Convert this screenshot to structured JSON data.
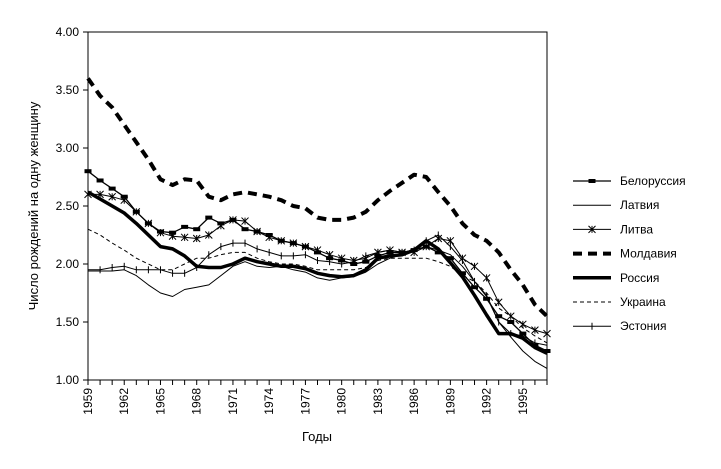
{
  "chart_data": {
    "type": "line",
    "title": "",
    "xlabel": "Годы",
    "ylabel": "Число рождений на одну женщину",
    "xlim": [
      1959,
      1997
    ],
    "ylim": [
      1.0,
      4.0
    ],
    "x_ticks": [
      1959,
      1962,
      1965,
      1968,
      1971,
      1974,
      1977,
      1980,
      1983,
      1986,
      1989,
      1992,
      1995
    ],
    "y_ticks": [
      "1.00",
      "1.50",
      "2.00",
      "2.50",
      "3.00",
      "3.50",
      "4.00"
    ],
    "grid": false,
    "legend_position": "right",
    "x": [
      1959,
      1960,
      1961,
      1962,
      1963,
      1964,
      1965,
      1966,
      1967,
      1968,
      1969,
      1970,
      1971,
      1972,
      1973,
      1974,
      1975,
      1976,
      1977,
      1978,
      1979,
      1980,
      1981,
      1982,
      1983,
      1984,
      1985,
      1986,
      1987,
      1988,
      1989,
      1990,
      1991,
      1992,
      1993,
      1994,
      1995,
      1996,
      1997
    ],
    "series": [
      {
        "name": "Белоруссия",
        "style": "thin-dash-marker",
        "values": [
          2.8,
          2.72,
          2.65,
          2.58,
          2.45,
          2.35,
          2.28,
          2.27,
          2.32,
          2.3,
          2.4,
          2.35,
          2.38,
          2.3,
          2.28,
          2.25,
          2.2,
          2.18,
          2.15,
          2.1,
          2.05,
          2.03,
          2.0,
          2.02,
          2.07,
          2.1,
          2.1,
          2.12,
          2.15,
          2.1,
          2.05,
          1.92,
          1.8,
          1.7,
          1.55,
          1.5,
          1.4,
          1.3,
          1.25
        ]
      },
      {
        "name": "Латвия",
        "style": "thin",
        "values": [
          1.94,
          1.94,
          1.94,
          1.95,
          1.9,
          1.82,
          1.75,
          1.72,
          1.78,
          1.8,
          1.82,
          1.9,
          1.98,
          2.02,
          1.98,
          1.97,
          1.98,
          1.95,
          1.93,
          1.88,
          1.86,
          1.88,
          1.89,
          1.93,
          2.0,
          2.05,
          2.08,
          2.12,
          2.15,
          2.12,
          2.08,
          1.98,
          1.85,
          1.73,
          1.5,
          1.37,
          1.25,
          1.16,
          1.1
        ]
      },
      {
        "name": "Литва",
        "style": "thin-star",
        "values": [
          2.6,
          2.6,
          2.58,
          2.55,
          2.45,
          2.35,
          2.27,
          2.24,
          2.23,
          2.22,
          2.25,
          2.33,
          2.38,
          2.37,
          2.28,
          2.23,
          2.2,
          2.18,
          2.15,
          2.12,
          2.08,
          2.05,
          2.03,
          2.05,
          2.1,
          2.12,
          2.1,
          2.1,
          2.15,
          2.22,
          2.2,
          2.05,
          1.98,
          1.88,
          1.67,
          1.55,
          1.48,
          1.43,
          1.4
        ]
      },
      {
        "name": "Молдавия",
        "style": "thick-dash",
        "values": [
          3.6,
          3.45,
          3.35,
          3.2,
          3.05,
          2.9,
          2.73,
          2.68,
          2.73,
          2.72,
          2.58,
          2.55,
          2.6,
          2.62,
          2.6,
          2.58,
          2.55,
          2.5,
          2.48,
          2.4,
          2.38,
          2.38,
          2.4,
          2.45,
          2.55,
          2.63,
          2.7,
          2.77,
          2.75,
          2.62,
          2.5,
          2.35,
          2.25,
          2.2,
          2.1,
          1.95,
          1.82,
          1.65,
          1.55
        ]
      },
      {
        "name": "Россия",
        "style": "thick",
        "values": [
          2.62,
          2.56,
          2.5,
          2.44,
          2.35,
          2.25,
          2.15,
          2.13,
          2.07,
          1.98,
          1.97,
          1.97,
          2.0,
          2.05,
          2.02,
          2.0,
          1.98,
          1.98,
          1.96,
          1.92,
          1.9,
          1.89,
          1.9,
          1.95,
          2.05,
          2.07,
          2.08,
          2.12,
          2.2,
          2.13,
          2.01,
          1.89,
          1.73,
          1.56,
          1.4,
          1.4,
          1.36,
          1.28,
          1.23
        ]
      },
      {
        "name": "Украина",
        "style": "dashed",
        "values": [
          2.3,
          2.25,
          2.18,
          2.12,
          2.05,
          2.0,
          1.95,
          1.95,
          2.0,
          2.05,
          2.05,
          2.08,
          2.1,
          2.1,
          2.05,
          2.02,
          2.0,
          2.0,
          1.98,
          1.95,
          1.95,
          1.95,
          1.95,
          1.97,
          2.03,
          2.05,
          2.05,
          2.05,
          2.05,
          2.02,
          1.98,
          1.9,
          1.85,
          1.75,
          1.62,
          1.55,
          1.45,
          1.38,
          1.32
        ]
      },
      {
        "name": "Эстония",
        "style": "thin-plus",
        "values": [
          1.95,
          1.95,
          1.97,
          1.98,
          1.95,
          1.95,
          1.95,
          1.92,
          1.92,
          1.97,
          2.08,
          2.15,
          2.18,
          2.18,
          2.13,
          2.1,
          2.07,
          2.07,
          2.08,
          2.03,
          2.02,
          2.0,
          2.02,
          2.07,
          2.1,
          2.12,
          2.1,
          2.12,
          2.2,
          2.25,
          2.15,
          2.03,
          1.85,
          1.72,
          1.5,
          1.4,
          1.38,
          1.32,
          1.3
        ]
      }
    ]
  }
}
